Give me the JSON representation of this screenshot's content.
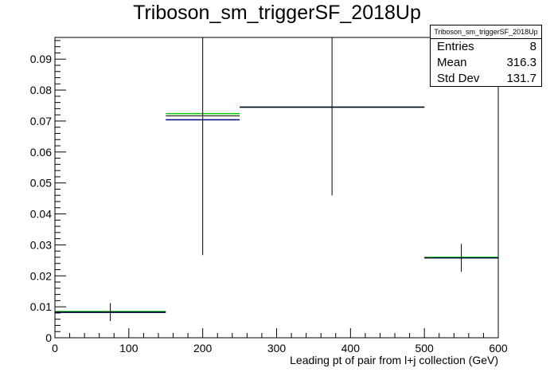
{
  "title": "Triboson_sm_triggerSF_2018Up",
  "stats": {
    "name": "Triboson_sm_triggerSF_2018Up",
    "rows": [
      {
        "label": "Entries",
        "value": "8"
      },
      {
        "label": "Mean",
        "value": "316.3"
      },
      {
        "label": "Std Dev",
        "value": "131.7"
      }
    ]
  },
  "chart_data": {
    "type": "histogram",
    "title": "Triboson_sm_triggerSF_2018Up",
    "xlabel": "Leading pt of pair from l+j collection (GeV)",
    "ylabel": "",
    "xlim": [
      0,
      600
    ],
    "ylim": [
      0,
      0.097
    ],
    "xticks": [
      0,
      100,
      200,
      300,
      400,
      500,
      600
    ],
    "yticks": [
      0,
      0.01,
      0.02,
      0.03,
      0.04,
      0.05,
      0.06,
      0.07,
      0.08,
      0.09
    ],
    "bins": [
      {
        "low": 0,
        "high": 150,
        "value": 0.0083,
        "err": 0.0029
      },
      {
        "low": 150,
        "high": 250,
        "value": 0.0717,
        "err": 0.045
      },
      {
        "low": 250,
        "high": 500,
        "value": 0.0745,
        "err": 0.0285
      },
      {
        "low": 500,
        "high": 600,
        "value": 0.0258,
        "err": 0.0045
      }
    ],
    "variants": [
      {
        "color": "#00cc00",
        "values": [
          0.0085,
          0.0724,
          0.0745,
          0.026
        ]
      },
      {
        "color": "#000080",
        "values": [
          0.0082,
          0.0704,
          0.0745,
          0.0258
        ]
      }
    ],
    "colors": {
      "main": "#000000",
      "up": "#00cc00",
      "down": "#000080"
    }
  }
}
